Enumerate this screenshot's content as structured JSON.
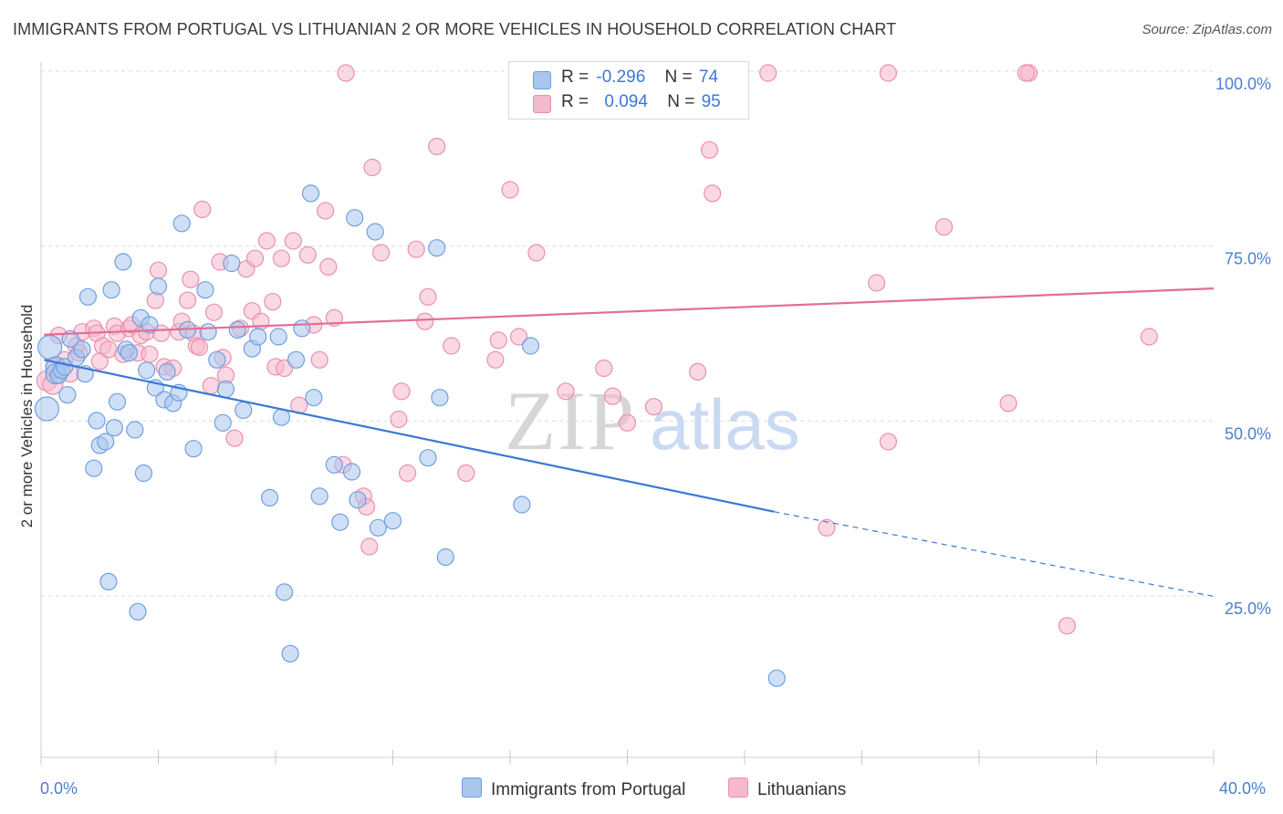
{
  "title": "IMMIGRANTS FROM PORTUGAL VS LITHUANIAN 2 OR MORE VEHICLES IN HOUSEHOLD CORRELATION CHART",
  "source": "Source: ZipAtlas.com",
  "watermark": {
    "zip": "ZIP",
    "atlas": "atlas"
  },
  "colors": {
    "blue_fill": "#a8c6ee",
    "blue_stroke": "#6f9fdf",
    "blue_line": "#3a78d6",
    "pink_fill": "#f5b8cc",
    "pink_stroke": "#e98fae",
    "pink_line": "#e36d97",
    "tick_text": "#4a7fd0",
    "grid": "#dcdcdc"
  },
  "stats": {
    "blue": {
      "r_label": "R =",
      "r_value": "-0.296",
      "n_label": "N =",
      "n_value": "74"
    },
    "pink": {
      "r_label": "R =",
      "r_value": "0.094",
      "n_label": "N =",
      "n_value": "95"
    }
  },
  "legend": {
    "blue": "Immigrants from Portugal",
    "pink": "Lithuanians"
  },
  "chart_data": {
    "type": "scatter",
    "title": "IMMIGRANTS FROM PORTUGAL VS LITHUANIAN 2 OR MORE VEHICLES IN HOUSEHOLD CORRELATION CHART",
    "xlabel": "",
    "ylabel": "2 or more Vehicles in Household",
    "xlim": [
      0,
      40
    ],
    "ylim": [
      0,
      103
    ],
    "x_ticks": [
      "0.0%",
      "40.0%"
    ],
    "y_ticks": [
      {
        "value": 25,
        "label": "25.0%"
      },
      {
        "value": 50,
        "label": "50.0%"
      },
      {
        "value": 75,
        "label": "75.0%"
      },
      {
        "value": 100,
        "label": "100.0%"
      }
    ],
    "grid": "horizontal dashed",
    "legend_position": "bottom-center",
    "series": [
      {
        "name": "Immigrants from Portugal",
        "color": "blue",
        "trend": {
          "x0": 0.1,
          "y0": 59.0,
          "x1": 25.0,
          "y1": 37.3,
          "dash_to_x": 40.0,
          "dash_to_y": 25.2
        },
        "points": [
          [
            0.2,
            52.0
          ],
          [
            0.3,
            60.8
          ],
          [
            0.5,
            58.0
          ],
          [
            0.5,
            57.0
          ],
          [
            0.6,
            56.8
          ],
          [
            0.7,
            57.5
          ],
          [
            0.8,
            58.0
          ],
          [
            0.9,
            54.0
          ],
          [
            1.0,
            62.0
          ],
          [
            1.2,
            59.3
          ],
          [
            1.4,
            60.5
          ],
          [
            1.5,
            57.0
          ],
          [
            1.6,
            68.0
          ],
          [
            1.8,
            43.5
          ],
          [
            1.9,
            50.3
          ],
          [
            2.0,
            46.8
          ],
          [
            2.2,
            47.3
          ],
          [
            2.3,
            27.3
          ],
          [
            2.4,
            69.0
          ],
          [
            2.5,
            49.3
          ],
          [
            2.6,
            53.0
          ],
          [
            2.8,
            73.0
          ],
          [
            2.9,
            60.5
          ],
          [
            3.0,
            60.0
          ],
          [
            3.2,
            49.0
          ],
          [
            3.3,
            23.0
          ],
          [
            3.4,
            65.0
          ],
          [
            3.5,
            42.8
          ],
          [
            3.6,
            57.5
          ],
          [
            3.7,
            64.0
          ],
          [
            3.9,
            55.0
          ],
          [
            4.0,
            69.5
          ],
          [
            4.2,
            53.3
          ],
          [
            4.3,
            57.3
          ],
          [
            4.5,
            52.8
          ],
          [
            4.7,
            54.3
          ],
          [
            4.8,
            78.5
          ],
          [
            5.0,
            63.3
          ],
          [
            5.2,
            46.3
          ],
          [
            5.6,
            69.0
          ],
          [
            5.7,
            63.0
          ],
          [
            6.0,
            59.0
          ],
          [
            6.2,
            50.0
          ],
          [
            6.3,
            54.8
          ],
          [
            6.5,
            72.8
          ],
          [
            6.7,
            63.3
          ],
          [
            6.9,
            51.8
          ],
          [
            7.2,
            60.6
          ],
          [
            7.4,
            62.3
          ],
          [
            7.8,
            39.3
          ],
          [
            8.1,
            62.3
          ],
          [
            8.2,
            50.8
          ],
          [
            8.3,
            25.8
          ],
          [
            8.5,
            17.0
          ],
          [
            8.7,
            59.0
          ],
          [
            8.9,
            63.5
          ],
          [
            9.2,
            82.8
          ],
          [
            9.3,
            53.6
          ],
          [
            9.5,
            39.5
          ],
          [
            10.0,
            44.0
          ],
          [
            10.2,
            35.8
          ],
          [
            10.6,
            43.0
          ],
          [
            10.7,
            79.3
          ],
          [
            10.8,
            39.0
          ],
          [
            11.4,
            77.3
          ],
          [
            11.5,
            35.0
          ],
          [
            12.0,
            36.0
          ],
          [
            13.2,
            45.0
          ],
          [
            13.5,
            75.0
          ],
          [
            13.6,
            53.6
          ],
          [
            13.8,
            30.8
          ],
          [
            16.4,
            38.3
          ],
          [
            16.7,
            61.0
          ],
          [
            25.1,
            13.5
          ]
        ]
      },
      {
        "name": "Lithuanians",
        "color": "pink",
        "trend": {
          "x0": 0.1,
          "y0": 62.6,
          "x1": 40.0,
          "y1": 69.2
        },
        "points": [
          [
            0.2,
            56.0
          ],
          [
            0.4,
            55.5
          ],
          [
            0.5,
            57.8
          ],
          [
            0.6,
            62.5
          ],
          [
            0.8,
            59.0
          ],
          [
            1.0,
            57.0
          ],
          [
            1.2,
            61.0
          ],
          [
            1.3,
            60.0
          ],
          [
            1.4,
            63.0
          ],
          [
            1.8,
            63.5
          ],
          [
            1.9,
            62.8
          ],
          [
            2.0,
            58.8
          ],
          [
            2.1,
            61.0
          ],
          [
            2.3,
            60.5
          ],
          [
            2.5,
            63.8
          ],
          [
            2.6,
            62.8
          ],
          [
            2.8,
            59.8
          ],
          [
            3.0,
            63.5
          ],
          [
            3.1,
            64.0
          ],
          [
            3.3,
            60.0
          ],
          [
            3.4,
            62.5
          ],
          [
            3.6,
            63.0
          ],
          [
            3.7,
            59.8
          ],
          [
            3.9,
            67.5
          ],
          [
            4.0,
            71.8
          ],
          [
            4.1,
            62.8
          ],
          [
            4.2,
            58.0
          ],
          [
            4.5,
            57.8
          ],
          [
            4.7,
            63.0
          ],
          [
            4.8,
            64.5
          ],
          [
            5.0,
            67.5
          ],
          [
            5.1,
            70.5
          ],
          [
            5.2,
            62.8
          ],
          [
            5.3,
            61.0
          ],
          [
            5.4,
            60.8
          ],
          [
            5.5,
            80.5
          ],
          [
            5.8,
            55.3
          ],
          [
            5.9,
            65.8
          ],
          [
            6.1,
            73.0
          ],
          [
            6.2,
            59.3
          ],
          [
            6.3,
            56.8
          ],
          [
            6.6,
            47.8
          ],
          [
            6.8,
            63.5
          ],
          [
            7.0,
            72.0
          ],
          [
            7.2,
            66.0
          ],
          [
            7.3,
            73.5
          ],
          [
            7.5,
            64.5
          ],
          [
            7.7,
            76.0
          ],
          [
            7.9,
            67.3
          ],
          [
            8.0,
            58.0
          ],
          [
            8.2,
            73.5
          ],
          [
            8.3,
            57.8
          ],
          [
            8.6,
            76.0
          ],
          [
            8.8,
            52.5
          ],
          [
            9.1,
            74.0
          ],
          [
            9.3,
            64.0
          ],
          [
            9.5,
            59.0
          ],
          [
            9.7,
            80.3
          ],
          [
            9.8,
            72.3
          ],
          [
            10.0,
            65.0
          ],
          [
            10.3,
            44.0
          ],
          [
            10.4,
            100.0
          ],
          [
            11.0,
            39.5
          ],
          [
            11.1,
            38.0
          ],
          [
            11.2,
            32.3
          ],
          [
            11.3,
            86.5
          ],
          [
            11.6,
            74.3
          ],
          [
            12.2,
            50.5
          ],
          [
            12.3,
            54.5
          ],
          [
            12.5,
            42.8
          ],
          [
            12.8,
            74.8
          ],
          [
            13.1,
            64.5
          ],
          [
            13.2,
            68.0
          ],
          [
            13.5,
            89.5
          ],
          [
            14.0,
            61.0
          ],
          [
            14.5,
            42.8
          ],
          [
            15.5,
            59.0
          ],
          [
            15.6,
            61.8
          ],
          [
            16.0,
            83.3
          ],
          [
            16.3,
            62.3
          ],
          [
            16.9,
            74.3
          ],
          [
            17.9,
            54.5
          ],
          [
            18.5,
            100.0
          ],
          [
            19.2,
            57.8
          ],
          [
            19.5,
            53.8
          ],
          [
            20.0,
            50.0
          ],
          [
            20.9,
            52.3
          ],
          [
            22.4,
            57.3
          ],
          [
            22.8,
            89.0
          ],
          [
            22.9,
            82.8
          ],
          [
            24.8,
            100.0
          ],
          [
            26.8,
            35.0
          ],
          [
            28.5,
            70.0
          ],
          [
            28.9,
            47.3
          ],
          [
            35.0,
            21.0
          ]
        ]
      }
    ],
    "extra_points": {
      "pink_top": [
        [
          18.7,
          100.0
        ],
        [
          28.9,
          100.0
        ],
        [
          33.7,
          100.0
        ],
        [
          30.8,
          78.0
        ],
        [
          33.0,
          52.8
        ],
        [
          37.8,
          62.3
        ],
        [
          33.6,
          100.0
        ]
      ]
    }
  }
}
